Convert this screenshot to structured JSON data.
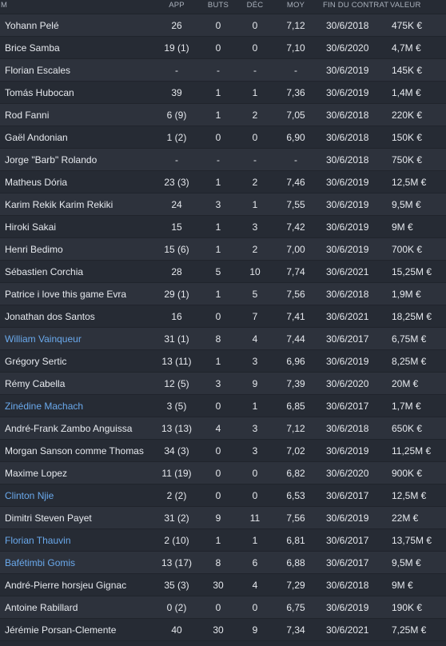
{
  "columns": {
    "name": "M",
    "app": "APP",
    "buts": "BUTS",
    "dec": "DÉC",
    "moy": "MOY",
    "fin": "FIN DU CONTRAT",
    "valeur": "VALEUR"
  },
  "players": [
    {
      "name": "Yohann Pelé",
      "app": "26",
      "buts": "0",
      "dec": "0",
      "moy": "7,12",
      "fin": "30/6/2018",
      "valeur": "475K €",
      "highlight": false
    },
    {
      "name": "Brice Samba",
      "app": "19 (1)",
      "buts": "0",
      "dec": "0",
      "moy": "7,10",
      "fin": "30/6/2020",
      "valeur": "4,7M €",
      "highlight": false
    },
    {
      "name": "Florian Escales",
      "app": "-",
      "buts": "-",
      "dec": "-",
      "moy": "-",
      "fin": "30/6/2019",
      "valeur": "145K €",
      "highlight": false
    },
    {
      "name": "Tomás Hubocan",
      "app": "39",
      "buts": "1",
      "dec": "1",
      "moy": "7,36",
      "fin": "30/6/2019",
      "valeur": "1,4M €",
      "highlight": false
    },
    {
      "name": "Rod Fanni",
      "app": "6 (9)",
      "buts": "1",
      "dec": "2",
      "moy": "7,05",
      "fin": "30/6/2018",
      "valeur": "220K €",
      "highlight": false
    },
    {
      "name": "Gaël Andonian",
      "app": "1 (2)",
      "buts": "0",
      "dec": "0",
      "moy": "6,90",
      "fin": "30/6/2018",
      "valeur": "150K €",
      "highlight": false
    },
    {
      "name": "Jorge \"Barb\" Rolando",
      "app": "-",
      "buts": "-",
      "dec": "-",
      "moy": "-",
      "fin": "30/6/2018",
      "valeur": "750K €",
      "highlight": false
    },
    {
      "name": "Matheus Dória",
      "app": "23 (3)",
      "buts": "1",
      "dec": "2",
      "moy": "7,46",
      "fin": "30/6/2019",
      "valeur": "12,5M €",
      "highlight": false
    },
    {
      "name": "Karim Rekik Karim Rekiki",
      "app": "24",
      "buts": "3",
      "dec": "1",
      "moy": "7,55",
      "fin": "30/6/2019",
      "valeur": "9,5M €",
      "highlight": false
    },
    {
      "name": "Hiroki Sakai",
      "app": "15",
      "buts": "1",
      "dec": "3",
      "moy": "7,42",
      "fin": "30/6/2019",
      "valeur": "9M €",
      "highlight": false
    },
    {
      "name": "Henri Bedimo",
      "app": "15 (6)",
      "buts": "1",
      "dec": "2",
      "moy": "7,00",
      "fin": "30/6/2019",
      "valeur": "700K €",
      "highlight": false
    },
    {
      "name": "Sébastien Corchia",
      "app": "28",
      "buts": "5",
      "dec": "10",
      "moy": "7,74",
      "fin": "30/6/2021",
      "valeur": "15,25M €",
      "highlight": false
    },
    {
      "name": "Patrice i love this game Evra",
      "app": "29 (1)",
      "buts": "1",
      "dec": "5",
      "moy": "7,56",
      "fin": "30/6/2018",
      "valeur": "1,9M €",
      "highlight": false
    },
    {
      "name": "Jonathan dos Santos",
      "app": "16",
      "buts": "0",
      "dec": "7",
      "moy": "7,41",
      "fin": "30/6/2021",
      "valeur": "18,25M €",
      "highlight": false
    },
    {
      "name": "William Vainqueur",
      "app": "31 (1)",
      "buts": "8",
      "dec": "4",
      "moy": "7,44",
      "fin": "30/6/2017",
      "valeur": "6,75M €",
      "highlight": true
    },
    {
      "name": "Grégory Sertic",
      "app": "13 (11)",
      "buts": "1",
      "dec": "3",
      "moy": "6,96",
      "fin": "30/6/2019",
      "valeur": "8,25M €",
      "highlight": false
    },
    {
      "name": "Rémy Cabella",
      "app": "12 (5)",
      "buts": "3",
      "dec": "9",
      "moy": "7,39",
      "fin": "30/6/2020",
      "valeur": "20M €",
      "highlight": false
    },
    {
      "name": "Zinédine Machach",
      "app": "3 (5)",
      "buts": "0",
      "dec": "1",
      "moy": "6,85",
      "fin": "30/6/2017",
      "valeur": "1,7M €",
      "highlight": true
    },
    {
      "name": "André-Frank Zambo Anguissa",
      "app": "13 (13)",
      "buts": "4",
      "dec": "3",
      "moy": "7,12",
      "fin": "30/6/2018",
      "valeur": "650K €",
      "highlight": false
    },
    {
      "name": "Morgan Sanson comme Thomas",
      "app": "34 (3)",
      "buts": "0",
      "dec": "3",
      "moy": "7,02",
      "fin": "30/6/2019",
      "valeur": "11,25M €",
      "highlight": false
    },
    {
      "name": "Maxime Lopez",
      "app": "11 (19)",
      "buts": "0",
      "dec": "0",
      "moy": "6,82",
      "fin": "30/6/2020",
      "valeur": "900K €",
      "highlight": false
    },
    {
      "name": "Clinton Njie",
      "app": "2 (2)",
      "buts": "0",
      "dec": "0",
      "moy": "6,53",
      "fin": "30/6/2017",
      "valeur": "12,5M €",
      "highlight": true
    },
    {
      "name": "Dimitri Steven Payet",
      "app": "31 (2)",
      "buts": "9",
      "dec": "11",
      "moy": "7,56",
      "fin": "30/6/2019",
      "valeur": "22M €",
      "highlight": false
    },
    {
      "name": "Florian Thauvin",
      "app": "2 (10)",
      "buts": "1",
      "dec": "1",
      "moy": "6,81",
      "fin": "30/6/2017",
      "valeur": "13,75M €",
      "highlight": true
    },
    {
      "name": "Bafétimbi Gomis",
      "app": "13 (17)",
      "buts": "8",
      "dec": "6",
      "moy": "6,88",
      "fin": "30/6/2017",
      "valeur": "9,5M €",
      "highlight": true
    },
    {
      "name": "André-Pierre horsjeu Gignac",
      "app": "35 (3)",
      "buts": "30",
      "dec": "4",
      "moy": "7,29",
      "fin": "30/6/2018",
      "valeur": "9M €",
      "highlight": false
    },
    {
      "name": "Antoine Rabillard",
      "app": "0 (2)",
      "buts": "0",
      "dec": "0",
      "moy": "6,75",
      "fin": "30/6/2019",
      "valeur": "190K €",
      "highlight": false
    },
    {
      "name": "Jérémie Porsan-Clemente",
      "app": "40",
      "buts": "30",
      "dec": "9",
      "moy": "7,34",
      "fin": "30/6/2021",
      "valeur": "7,25M €",
      "highlight": false
    }
  ],
  "colors": {
    "highlight_name": "#6aa9ec",
    "text": "#e6e9ee",
    "header_text": "#aab1bc",
    "row_odd": "#2d323c",
    "row_even": "#262b34"
  }
}
